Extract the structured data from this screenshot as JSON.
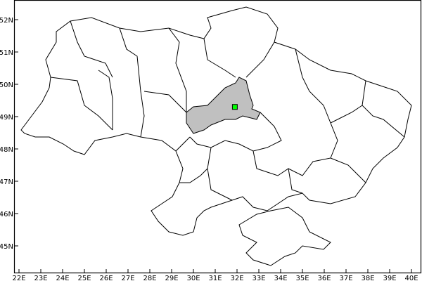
{
  "map": {
    "x_ticks": [
      "22E",
      "23E",
      "24E",
      "25E",
      "26E",
      "27E",
      "28E",
      "29E",
      "30E",
      "31E",
      "32E",
      "33E",
      "34E",
      "35E",
      "36E",
      "37E",
      "38E",
      "39E",
      "40E"
    ],
    "y_ticks": [
      "45N",
      "46N",
      "47N",
      "48N",
      "49N",
      "50N",
      "51N",
      "52N"
    ],
    "highlight_fill": "#c0c0c0",
    "marker_color": "#00ff00",
    "marker_lon": 31.9,
    "marker_lat": 49.3
  }
}
